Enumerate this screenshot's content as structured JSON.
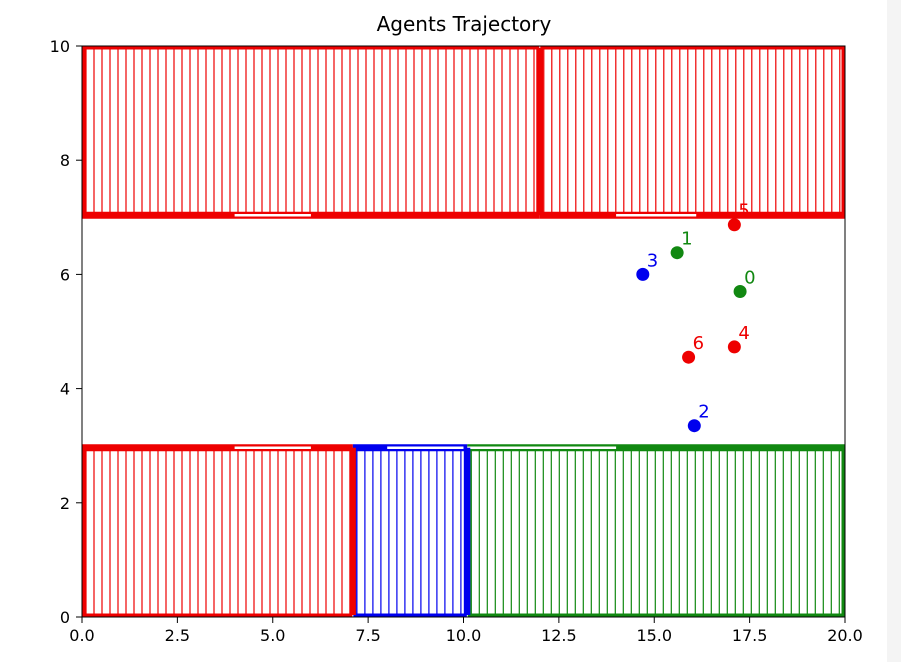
{
  "chart_data": {
    "type": "scatter",
    "title": "Agents Trajectory",
    "xlabel": "",
    "ylabel": "",
    "xlim": [
      0,
      20
    ],
    "ylim": [
      0,
      10
    ],
    "x_ticks": [
      "0.0",
      "2.5",
      "5.0",
      "7.5",
      "10.0",
      "12.5",
      "15.0",
      "17.5",
      "20.0"
    ],
    "y_ticks": [
      "0",
      "2",
      "4",
      "6",
      "8",
      "10"
    ],
    "grid": false,
    "legend": "none",
    "regions": [
      {
        "x0": 0,
        "x1": 12,
        "y0": 7,
        "y1": 10,
        "color": "#ee0000",
        "door": [
          4,
          6
        ]
      },
      {
        "x0": 12,
        "x1": 20,
        "y0": 7,
        "y1": 10,
        "color": "#ee0000",
        "door": [
          14,
          16.1
        ]
      },
      {
        "x0": 0,
        "x1": 7.1,
        "y0": 0,
        "y1": 3,
        "color": "#ee0000",
        "door": [
          4,
          6
        ]
      },
      {
        "x0": 7.1,
        "x1": 10.1,
        "y0": 0,
        "y1": 3,
        "color": "#0000ee",
        "door": [
          8,
          10
        ]
      },
      {
        "x0": 10.1,
        "x1": 20,
        "y0": 0,
        "y1": 3,
        "color": "#118811",
        "door": [
          10.1,
          14
        ]
      }
    ],
    "points": [
      {
        "label": "0",
        "x": 17.25,
        "y": 5.7,
        "color": "#118811"
      },
      {
        "label": "1",
        "x": 15.6,
        "y": 6.38,
        "color": "#118811"
      },
      {
        "label": "2",
        "x": 16.05,
        "y": 3.35,
        "color": "#0000ee"
      },
      {
        "label": "3",
        "x": 14.7,
        "y": 6.0,
        "color": "#0000ee"
      },
      {
        "label": "4",
        "x": 17.1,
        "y": 4.73,
        "color": "#ee0000"
      },
      {
        "label": "5",
        "x": 17.1,
        "y": 6.87,
        "color": "#ee0000"
      },
      {
        "label": "6",
        "x": 15.9,
        "y": 4.55,
        "color": "#ee0000"
      }
    ]
  }
}
